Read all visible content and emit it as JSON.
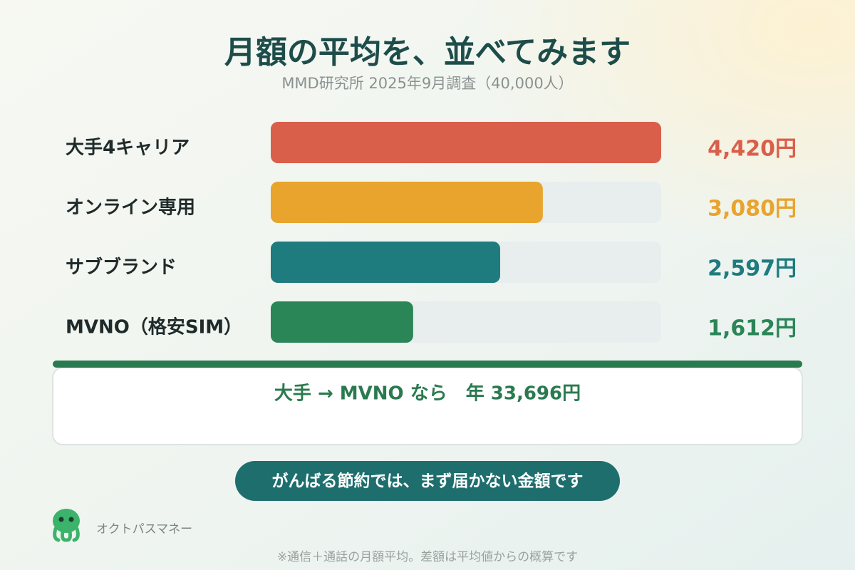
{
  "chart_data": {
    "type": "hbar",
    "title": "月額の平均を、並べてみます",
    "subtitle": "MMD研究所 2025年9月調査（40,000人）",
    "categories": [
      "大手4キャリア",
      "オンライン専用",
      "サブブランド",
      "MVNO（格安SIM）"
    ],
    "values": [
      4420,
      3080,
      2597,
      1612
    ],
    "value_labels": [
      "4,420円",
      "3,080円",
      "2,597円",
      "1,612円"
    ],
    "colors": [
      "#d95f4b",
      "#e8a42c",
      "#1e7b7e",
      "#2a8557"
    ]
  },
  "summary": "大手 → MVNO なら　年 33,696円",
  "button": "がんばる節約では、まず届かない金額です",
  "brand": "オクトパスマネー",
  "footnote": "※通信＋通話の月額平均。差額は平均値からの概算です"
}
